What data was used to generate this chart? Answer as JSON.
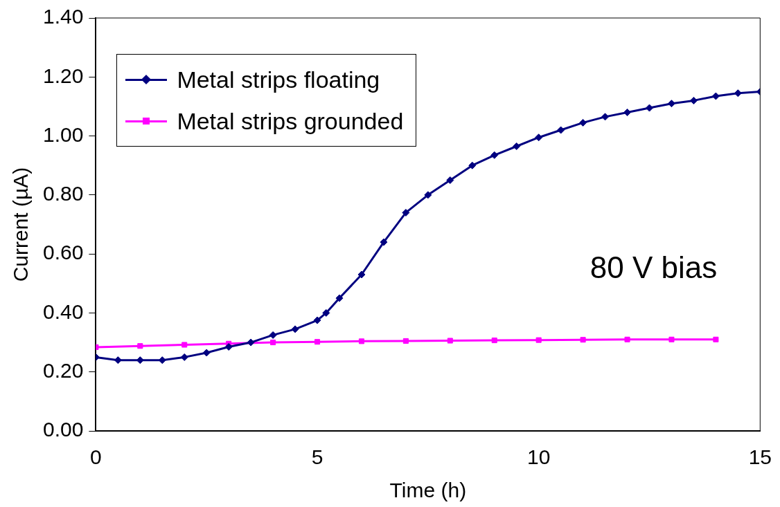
{
  "chart_data": {
    "type": "line",
    "xlabel": "Time (h)",
    "ylabel": "Current (µA)",
    "xlim": [
      0,
      15
    ],
    "xticks": [
      0,
      5,
      10,
      15
    ],
    "ylim": [
      0,
      1.4
    ],
    "yticks": [
      {
        "value": 0,
        "label": "0.00"
      },
      {
        "value": 0.2,
        "label": "0.20"
      },
      {
        "value": 0.4,
        "label": "0.40"
      },
      {
        "value": 0.6,
        "label": "0.60"
      },
      {
        "value": 0.8,
        "label": "0.80"
      },
      {
        "value": 1.0,
        "label": "1.00"
      },
      {
        "value": 1.2,
        "label": "1.20"
      },
      {
        "value": 1.4,
        "label": "1.40"
      }
    ],
    "grid": false,
    "legend": "top left",
    "line_style": "solid",
    "annotations": [
      "80 V bias"
    ],
    "series": [
      {
        "name": "Metal strips floating",
        "color": "#000080",
        "marker": "diamond",
        "x": [
          0,
          0.5,
          1,
          1.5,
          2,
          2.5,
          3,
          3.5,
          4,
          4.5,
          5,
          5.2,
          5.5,
          6,
          6.5,
          7,
          7.5,
          8,
          8.5,
          9,
          9.5,
          10,
          10.5,
          11,
          11.5,
          12,
          12.5,
          13,
          13.5,
          14,
          14.5,
          15
        ],
        "values": [
          0.25,
          0.24,
          0.24,
          0.24,
          0.25,
          0.265,
          0.285,
          0.3,
          0.325,
          0.345,
          0.375,
          0.4,
          0.45,
          0.53,
          0.64,
          0.74,
          0.8,
          0.85,
          0.9,
          0.935,
          0.965,
          0.995,
          1.02,
          1.045,
          1.065,
          1.08,
          1.095,
          1.11,
          1.12,
          1.135,
          1.145,
          1.15
        ]
      },
      {
        "name": "Metal strips grounded",
        "color": "#ff00ff",
        "marker": "square",
        "x": [
          0,
          1,
          2,
          3,
          4,
          5,
          6,
          7,
          8,
          9,
          10,
          11,
          12,
          13,
          14
        ],
        "values": [
          0.284,
          0.288,
          0.292,
          0.296,
          0.3,
          0.302,
          0.304,
          0.305,
          0.306,
          0.307,
          0.308,
          0.309,
          0.31,
          0.31,
          0.31
        ]
      }
    ]
  }
}
